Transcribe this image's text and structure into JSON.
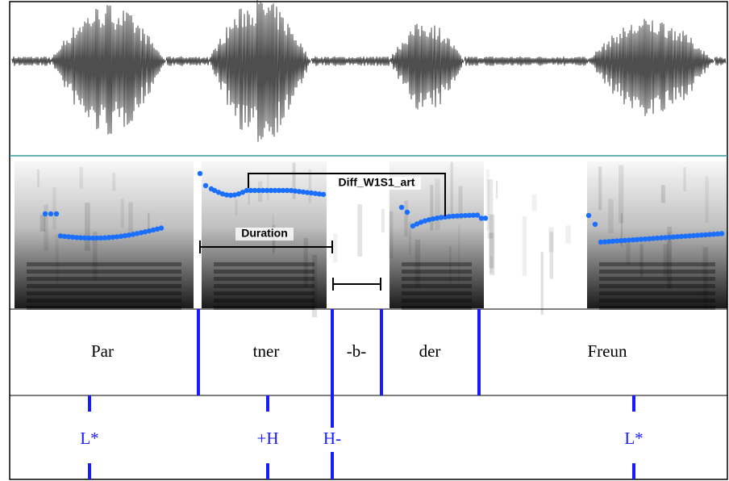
{
  "annotations": {
    "duration": "Duration",
    "diff": "Diff_W1S1_art"
  },
  "word_tier": {
    "labels": [
      "Par",
      "tner",
      "-b-",
      "der",
      "Freun"
    ]
  },
  "tone_tier": {
    "labels": [
      "L*",
      "+H",
      "H-",
      "L*"
    ]
  }
}
